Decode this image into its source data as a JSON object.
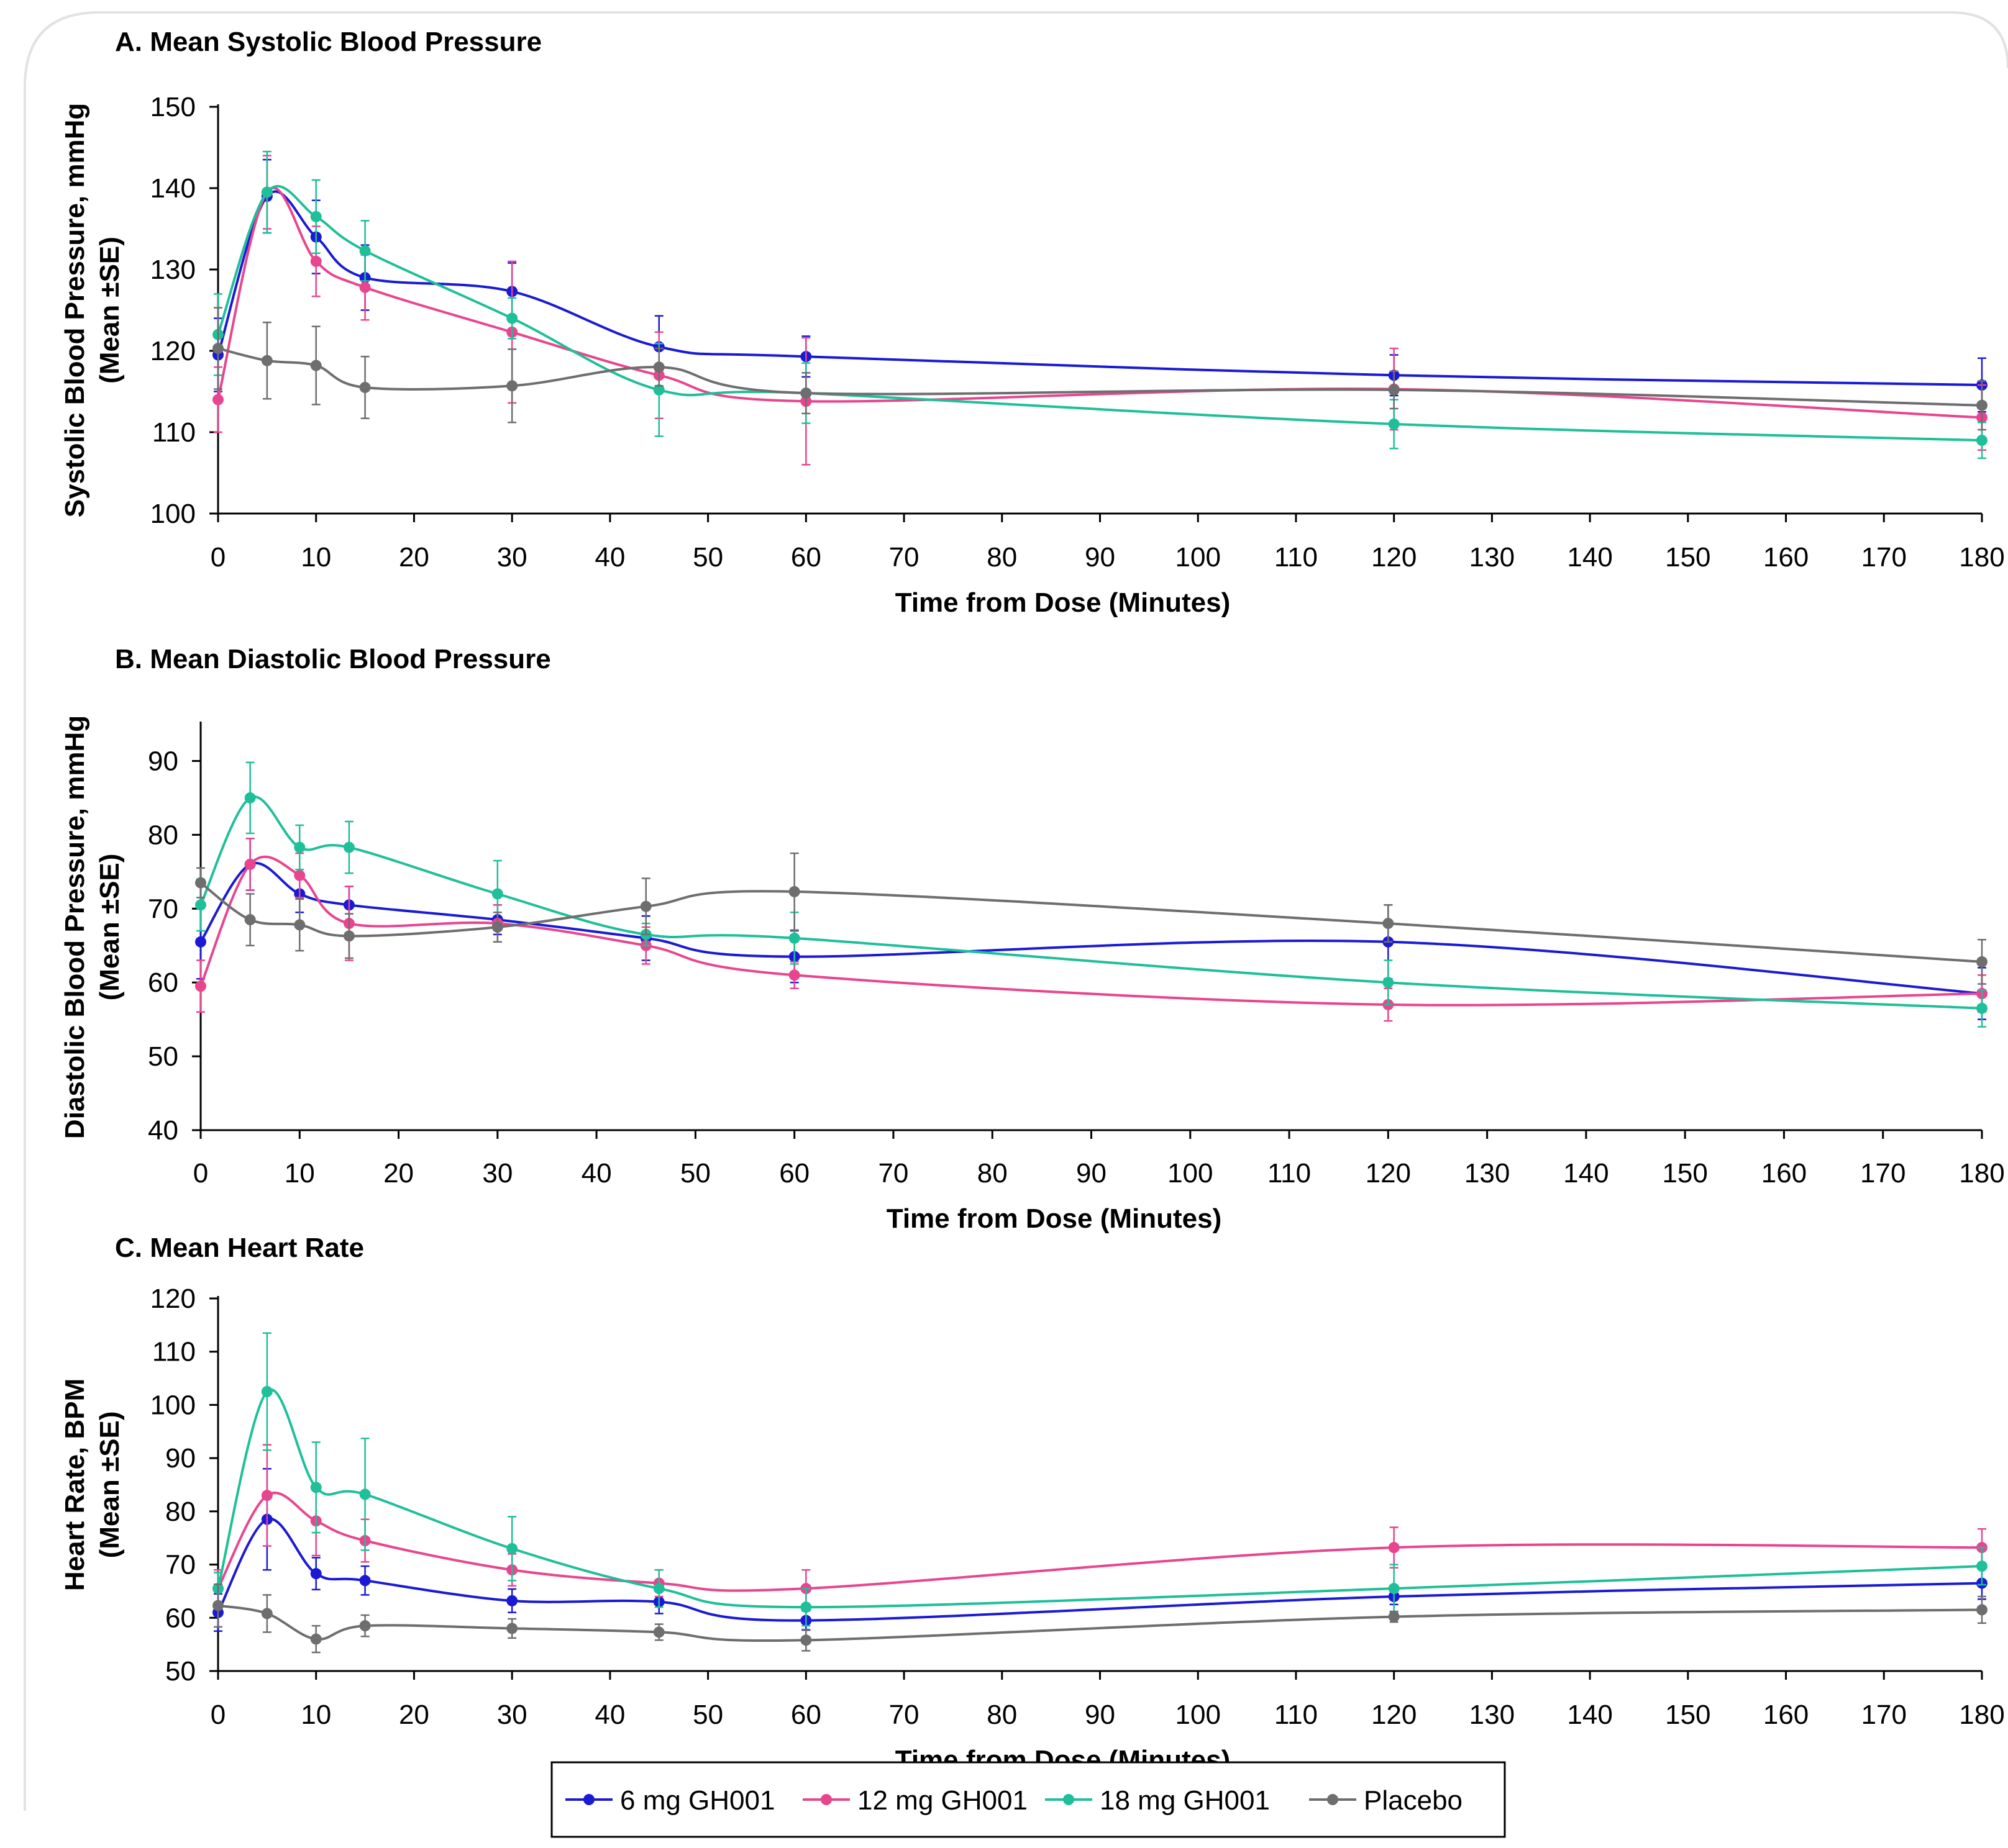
{
  "chart_data": [
    {
      "type": "line",
      "title": "A. Mean Systolic Blood Pressure",
      "xlabel": "Time from Dose (Minutes)",
      "ylabel": [
        "Systolic Blood Pressure, mmHg",
        "(Mean ±SE)"
      ],
      "xlim": [
        0,
        180
      ],
      "ylim": [
        100,
        150
      ],
      "xticks": [
        0,
        10,
        20,
        30,
        40,
        50,
        60,
        70,
        80,
        90,
        100,
        110,
        120,
        130,
        140,
        150,
        160,
        170,
        180
      ],
      "yticks": [
        100,
        110,
        120,
        130,
        140,
        150
      ],
      "x": [
        0,
        5,
        10,
        15,
        30,
        45,
        60,
        120,
        180
      ],
      "series": [
        {
          "name": "6 mg GH001",
          "color": "#1a1ad4",
          "values": [
            119.5,
            139.0,
            134.0,
            129.0,
            127.3,
            120.5,
            119.3,
            117.0,
            115.8
          ],
          "se": [
            4.5,
            4.5,
            4.5,
            4.0,
            3.5,
            3.8,
            2.5,
            2.5,
            3.3
          ]
        },
        {
          "name": "12 mg GH001",
          "color": "#e8458f",
          "values": [
            114.0,
            139.5,
            131.0,
            127.8,
            122.3,
            117.0,
            113.8,
            115.3,
            111.8
          ],
          "se": [
            4.0,
            4.5,
            4.3,
            4.0,
            8.7,
            5.3,
            7.8,
            5.0,
            4.0
          ]
        },
        {
          "name": "18 mg GH001",
          "color": "#1fbf99",
          "values": [
            122.0,
            139.5,
            136.5,
            132.3,
            124.0,
            115.2,
            114.8,
            111.0,
            109.0
          ],
          "se": [
            5.0,
            5.0,
            4.5,
            3.7,
            2.5,
            5.7,
            3.7,
            3.0,
            2.2
          ]
        },
        {
          "name": "Placebo",
          "color": "#6e6e6e",
          "values": [
            120.3,
            118.8,
            118.2,
            115.5,
            115.7,
            118.0,
            114.8,
            115.2,
            113.3
          ],
          "se": [
            5.0,
            4.7,
            4.8,
            3.8,
            4.5,
            2.3,
            2.5,
            2.3,
            3.0
          ]
        }
      ]
    },
    {
      "type": "line",
      "title": "B. Mean Diastolic Blood Pressure",
      "xlabel": "Time from Dose (Minutes)",
      "ylabel": [
        "Diastolic Blood Pressure, mmHg",
        "(Mean ±SE)"
      ],
      "xlim": [
        0,
        180
      ],
      "ylim": [
        40,
        95
      ],
      "xticks": [
        0,
        10,
        20,
        30,
        40,
        50,
        60,
        70,
        80,
        90,
        100,
        110,
        120,
        130,
        140,
        150,
        160,
        170,
        180
      ],
      "yticks": [
        40,
        50,
        60,
        70,
        80,
        90
      ],
      "x": [
        0,
        5,
        10,
        15,
        30,
        45,
        60,
        120,
        180
      ],
      "series": [
        {
          "name": "6 mg GH001",
          "color": "#1a1ad4",
          "values": [
            65.5,
            76.0,
            72.0,
            70.5,
            68.5,
            66.0,
            63.5,
            65.5,
            58.5
          ],
          "se": [
            5.0,
            3.5,
            2.5,
            2.5,
            2.0,
            3.0,
            3.5,
            5.0,
            3.5
          ]
        },
        {
          "name": "12 mg GH001",
          "color": "#e8458f",
          "values": [
            59.5,
            76.0,
            74.5,
            68.0,
            68.0,
            65.0,
            61.0,
            57.0,
            58.5
          ],
          "se": [
            3.5,
            3.5,
            3.0,
            5.0,
            2.5,
            2.5,
            1.8,
            2.2,
            2.5
          ]
        },
        {
          "name": "18 mg GH001",
          "color": "#1fbf99",
          "values": [
            70.5,
            85.0,
            78.3,
            78.3,
            72.0,
            66.5,
            66.0,
            60.0,
            56.5
          ],
          "se": [
            3.5,
            4.8,
            3.0,
            3.5,
            4.5,
            1.5,
            3.5,
            3.0,
            2.5
          ]
        },
        {
          "name": "Placebo",
          "color": "#6e6e6e",
          "values": [
            73.5,
            68.5,
            67.8,
            66.3,
            67.5,
            70.3,
            72.3,
            68.0,
            62.8
          ],
          "se": [
            2.0,
            3.5,
            3.5,
            3.0,
            2.0,
            3.8,
            5.2,
            2.5,
            3.0
          ]
        }
      ]
    },
    {
      "type": "line",
      "title": "C. Mean Heart Rate",
      "xlabel": "Time from Dose (Minutes)",
      "ylabel": [
        "Heart Rate, BPM",
        "(Mean ±SE)"
      ],
      "xlim": [
        0,
        180
      ],
      "ylim": [
        50,
        120
      ],
      "xticks": [
        0,
        10,
        20,
        30,
        40,
        50,
        60,
        70,
        80,
        90,
        100,
        110,
        120,
        130,
        140,
        150,
        160,
        170,
        180
      ],
      "yticks": [
        50,
        60,
        70,
        80,
        90,
        100,
        110,
        120
      ],
      "x": [
        0,
        5,
        10,
        15,
        30,
        45,
        60,
        120,
        180
      ],
      "series": [
        {
          "name": "6 mg GH001",
          "color": "#1a1ad4",
          "values": [
            61.0,
            78.5,
            68.3,
            67.0,
            63.2,
            63.0,
            59.5,
            64.0,
            66.5
          ],
          "se": [
            3.5,
            9.5,
            3.0,
            2.7,
            2.2,
            2.2,
            1.8,
            1.5,
            3.0
          ]
        },
        {
          "name": "12 mg GH001",
          "color": "#e8458f",
          "values": [
            65.5,
            83.0,
            78.2,
            74.5,
            69.0,
            66.5,
            65.5,
            73.2,
            73.2
          ],
          "se": [
            3.5,
            9.5,
            6.5,
            4.0,
            3.0,
            2.5,
            3.5,
            3.8,
            3.5
          ]
        },
        {
          "name": "18 mg GH001",
          "color": "#1fbf99",
          "values": [
            65.5,
            102.5,
            84.5,
            83.2,
            73.0,
            65.5,
            62.0,
            65.5,
            69.7
          ],
          "se": [
            3.0,
            11.0,
            8.5,
            10.5,
            6.0,
            3.5,
            3.5,
            4.5,
            3.5
          ]
        },
        {
          "name": "Placebo",
          "color": "#6e6e6e",
          "values": [
            62.3,
            60.8,
            56.0,
            58.5,
            58.0,
            57.3,
            55.8,
            60.2,
            61.5
          ],
          "se": [
            4.0,
            3.5,
            2.5,
            2.0,
            1.8,
            1.5,
            2.0,
            1.0,
            2.5
          ]
        }
      ]
    }
  ],
  "legend": {
    "items": [
      {
        "label": "6 mg GH001",
        "color": "#1a1ad4"
      },
      {
        "label": "12 mg GH001",
        "color": "#e8458f"
      },
      {
        "label": "18 mg GH001",
        "color": "#1fbf99"
      },
      {
        "label": "Placebo",
        "color": "#6e6e6e"
      }
    ]
  }
}
